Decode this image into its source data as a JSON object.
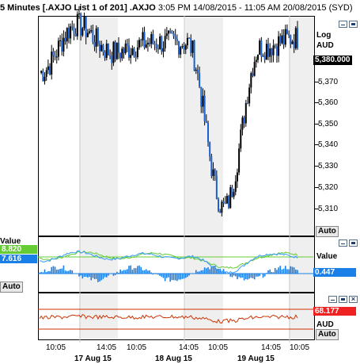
{
  "title": {
    "interval": "5 Minutes [.AXJO List 1 of 201] .AXJO",
    "range": "3:05 PM 14/08/2015 - 11:05 AM 20/08/2015 (SYD)"
  },
  "price_panel": {
    "scale_label": "Log",
    "currency_label": "AUD",
    "last_price": "5,380.000",
    "auto_label": "Auto",
    "ticks": [
      "5,370",
      "5,360",
      "5,350",
      "5,340",
      "5,330",
      "5,320",
      "5,310"
    ]
  },
  "oscillator_panel": {
    "left_label": "Value",
    "value_1": "8.820",
    "value_2": "7.616",
    "right_label": "Value",
    "right_value": "0.447",
    "auto_label": "Auto",
    "colors": {
      "line1": "#66cc33",
      "line2": "#3399ff",
      "hist": "#1a7fe6"
    }
  },
  "rsi_panel": {
    "value": "68.177",
    "currency_label": "AUD",
    "auto_label": "Auto",
    "colors": {
      "line": "#cc3300",
      "levels": "#cc3300",
      "badge": "#ee2222"
    }
  },
  "x_axis": {
    "times": [
      "10:05",
      "14:05",
      "10:05",
      "14:05",
      "10:05",
      "14:05",
      "10:05"
    ],
    "dates": [
      "17 Aug 15",
      "18 Aug 15",
      "19 Aug 15"
    ]
  },
  "chart_data": {
    "type": "line",
    "ylim": [
      5302,
      5388
    ],
    "y_scale": "log",
    "x": [
      "14 Aug 15:05",
      "17 Aug 10:05",
      "17 Aug 14:05",
      "18 Aug 10:05",
      "18 Aug 14:05",
      "19 Aug 10:05",
      "19 Aug 14:05",
      "20 Aug 10:05"
    ],
    "series": [
      {
        "values": [
          5366,
          5385,
          5374,
          5378,
          5378,
          5312,
          5376,
          5380
        ]
      }
    ]
  }
}
